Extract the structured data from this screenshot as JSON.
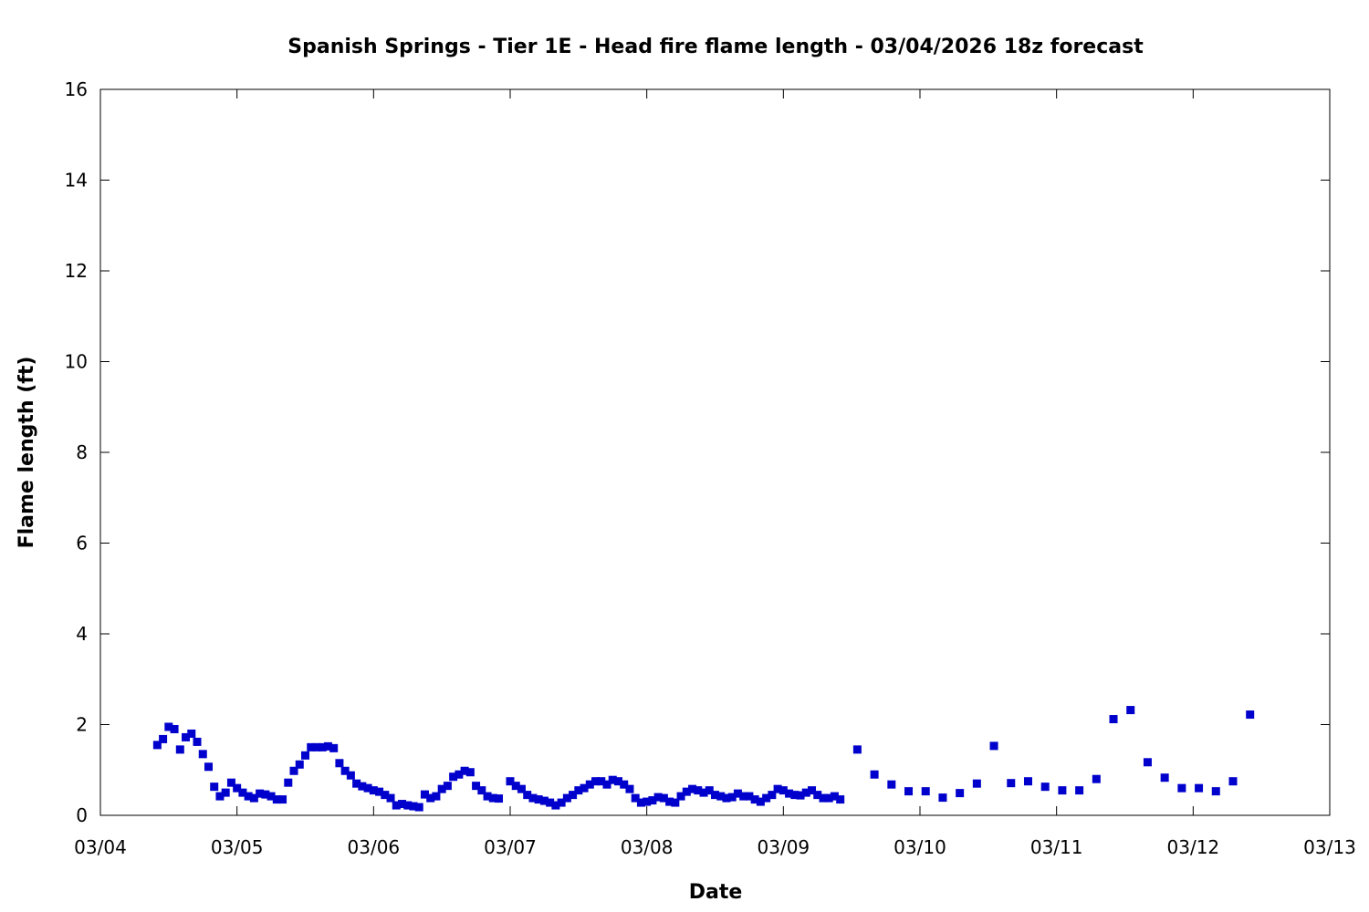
{
  "chart_data": {
    "type": "scatter",
    "title": "Spanish Springs - Tier 1E - Head fire flame length - 03/04/2026 18z forecast",
    "xlabel": "Date",
    "ylabel": "Flame length (ft)",
    "x_axis_kind": "date-hours",
    "x_tick_labels": [
      "03/04",
      "03/05",
      "03/06",
      "03/07",
      "03/08",
      "03/09",
      "03/10",
      "03/11",
      "03/12",
      "03/13"
    ],
    "xlim": [
      "2026-03-04T00:00",
      "2026-03-13T00:00"
    ],
    "ylim": [
      0,
      16
    ],
    "y_ticks": [
      0,
      2,
      4,
      6,
      8,
      10,
      12,
      14,
      16
    ],
    "grid": false,
    "marker_color": "#0000cc",
    "series": [
      {
        "x": [
          "2026-03-04T10:00",
          "2026-03-04T11:00",
          "2026-03-04T12:00",
          "2026-03-04T13:00",
          "2026-03-04T14:00",
          "2026-03-04T15:00",
          "2026-03-04T16:00",
          "2026-03-04T17:00",
          "2026-03-04T18:00",
          "2026-03-04T19:00",
          "2026-03-04T20:00",
          "2026-03-04T21:00",
          "2026-03-04T22:00",
          "2026-03-04T23:00",
          "2026-03-05T00:00",
          "2026-03-05T01:00",
          "2026-03-05T02:00",
          "2026-03-05T03:00",
          "2026-03-05T04:00",
          "2026-03-05T05:00",
          "2026-03-05T06:00",
          "2026-03-05T07:00",
          "2026-03-05T08:00",
          "2026-03-05T09:00",
          "2026-03-05T10:00",
          "2026-03-05T11:00",
          "2026-03-05T12:00",
          "2026-03-05T13:00",
          "2026-03-05T14:00",
          "2026-03-05T15:00",
          "2026-03-05T16:00",
          "2026-03-05T17:00",
          "2026-03-05T18:00",
          "2026-03-05T19:00",
          "2026-03-05T20:00",
          "2026-03-05T21:00",
          "2026-03-05T22:00",
          "2026-03-05T23:00",
          "2026-03-06T00:00",
          "2026-03-06T01:00",
          "2026-03-06T02:00",
          "2026-03-06T03:00",
          "2026-03-06T04:00",
          "2026-03-06T05:00",
          "2026-03-06T06:00",
          "2026-03-06T07:00",
          "2026-03-06T08:00",
          "2026-03-06T09:00",
          "2026-03-06T10:00",
          "2026-03-06T11:00",
          "2026-03-06T12:00",
          "2026-03-06T13:00",
          "2026-03-06T14:00",
          "2026-03-06T15:00",
          "2026-03-06T16:00",
          "2026-03-06T17:00",
          "2026-03-06T18:00",
          "2026-03-06T19:00",
          "2026-03-06T20:00",
          "2026-03-06T21:00",
          "2026-03-06T22:00",
          "2026-03-07T00:00",
          "2026-03-07T01:00",
          "2026-03-07T02:00",
          "2026-03-07T03:00",
          "2026-03-07T04:00",
          "2026-03-07T05:00",
          "2026-03-07T06:00",
          "2026-03-07T07:00",
          "2026-03-07T08:00",
          "2026-03-07T09:00",
          "2026-03-07T10:00",
          "2026-03-07T11:00",
          "2026-03-07T12:00",
          "2026-03-07T13:00",
          "2026-03-07T14:00",
          "2026-03-07T15:00",
          "2026-03-07T16:00",
          "2026-03-07T17:00",
          "2026-03-07T18:00",
          "2026-03-07T19:00",
          "2026-03-07T20:00",
          "2026-03-07T21:00",
          "2026-03-07T22:00",
          "2026-03-07T23:00",
          "2026-03-08T00:00",
          "2026-03-08T01:00",
          "2026-03-08T02:00",
          "2026-03-08T03:00",
          "2026-03-08T04:00",
          "2026-03-08T05:00",
          "2026-03-08T06:00",
          "2026-03-08T07:00",
          "2026-03-08T08:00",
          "2026-03-08T09:00",
          "2026-03-08T10:00",
          "2026-03-08T11:00",
          "2026-03-08T12:00",
          "2026-03-08T13:00",
          "2026-03-08T14:00",
          "2026-03-08T15:00",
          "2026-03-08T16:00",
          "2026-03-08T17:00",
          "2026-03-08T18:00",
          "2026-03-08T19:00",
          "2026-03-08T20:00",
          "2026-03-08T21:00",
          "2026-03-08T22:00",
          "2026-03-08T23:00",
          "2026-03-09T00:00",
          "2026-03-09T01:00",
          "2026-03-09T02:00",
          "2026-03-09T03:00",
          "2026-03-09T04:00",
          "2026-03-09T05:00",
          "2026-03-09T06:00",
          "2026-03-09T07:00",
          "2026-03-09T08:00",
          "2026-03-09T09:00",
          "2026-03-09T10:00",
          "2026-03-09T13:00",
          "2026-03-09T16:00",
          "2026-03-09T19:00",
          "2026-03-09T22:00",
          "2026-03-10T01:00",
          "2026-03-10T04:00",
          "2026-03-10T07:00",
          "2026-03-10T10:00",
          "2026-03-10T13:00",
          "2026-03-10T16:00",
          "2026-03-10T19:00",
          "2026-03-10T22:00",
          "2026-03-11T01:00",
          "2026-03-11T04:00",
          "2026-03-11T07:00",
          "2026-03-11T10:00",
          "2026-03-11T13:00",
          "2026-03-11T16:00",
          "2026-03-11T19:00",
          "2026-03-11T22:00",
          "2026-03-12T01:00",
          "2026-03-12T04:00",
          "2026-03-12T07:00",
          "2026-03-12T10:00"
        ],
        "y": [
          1.55,
          1.68,
          1.95,
          1.9,
          1.45,
          1.72,
          1.8,
          1.62,
          1.35,
          1.07,
          0.63,
          0.42,
          0.5,
          0.72,
          0.6,
          0.5,
          0.42,
          0.38,
          0.48,
          0.46,
          0.42,
          0.35,
          0.35,
          0.72,
          0.98,
          1.12,
          1.32,
          1.5,
          1.5,
          1.5,
          1.52,
          1.48,
          1.15,
          0.98,
          0.88,
          0.7,
          0.64,
          0.6,
          0.55,
          0.52,
          0.45,
          0.38,
          0.22,
          0.25,
          0.22,
          0.2,
          0.18,
          0.46,
          0.38,
          0.42,
          0.58,
          0.65,
          0.85,
          0.9,
          0.98,
          0.95,
          0.65,
          0.55,
          0.42,
          0.38,
          0.37,
          0.75,
          0.65,
          0.58,
          0.45,
          0.38,
          0.35,
          0.32,
          0.28,
          0.22,
          0.28,
          0.38,
          0.45,
          0.55,
          0.6,
          0.68,
          0.75,
          0.75,
          0.68,
          0.78,
          0.75,
          0.68,
          0.58,
          0.38,
          0.28,
          0.3,
          0.33,
          0.4,
          0.38,
          0.3,
          0.28,
          0.42,
          0.52,
          0.58,
          0.55,
          0.5,
          0.55,
          0.45,
          0.42,
          0.38,
          0.4,
          0.48,
          0.42,
          0.42,
          0.35,
          0.3,
          0.38,
          0.45,
          0.58,
          0.55,
          0.48,
          0.45,
          0.44,
          0.5,
          0.55,
          0.45,
          0.38,
          0.38,
          0.42,
          0.35,
          1.45,
          0.9,
          0.68,
          0.53,
          0.53,
          0.39,
          0.49,
          0.7,
          1.53,
          0.71,
          0.75,
          0.63,
          0.55,
          0.55,
          0.8,
          2.12,
          2.32,
          1.17,
          0.83,
          0.6,
          0.6,
          0.53,
          0.75,
          2.22
        ]
      }
    ]
  }
}
